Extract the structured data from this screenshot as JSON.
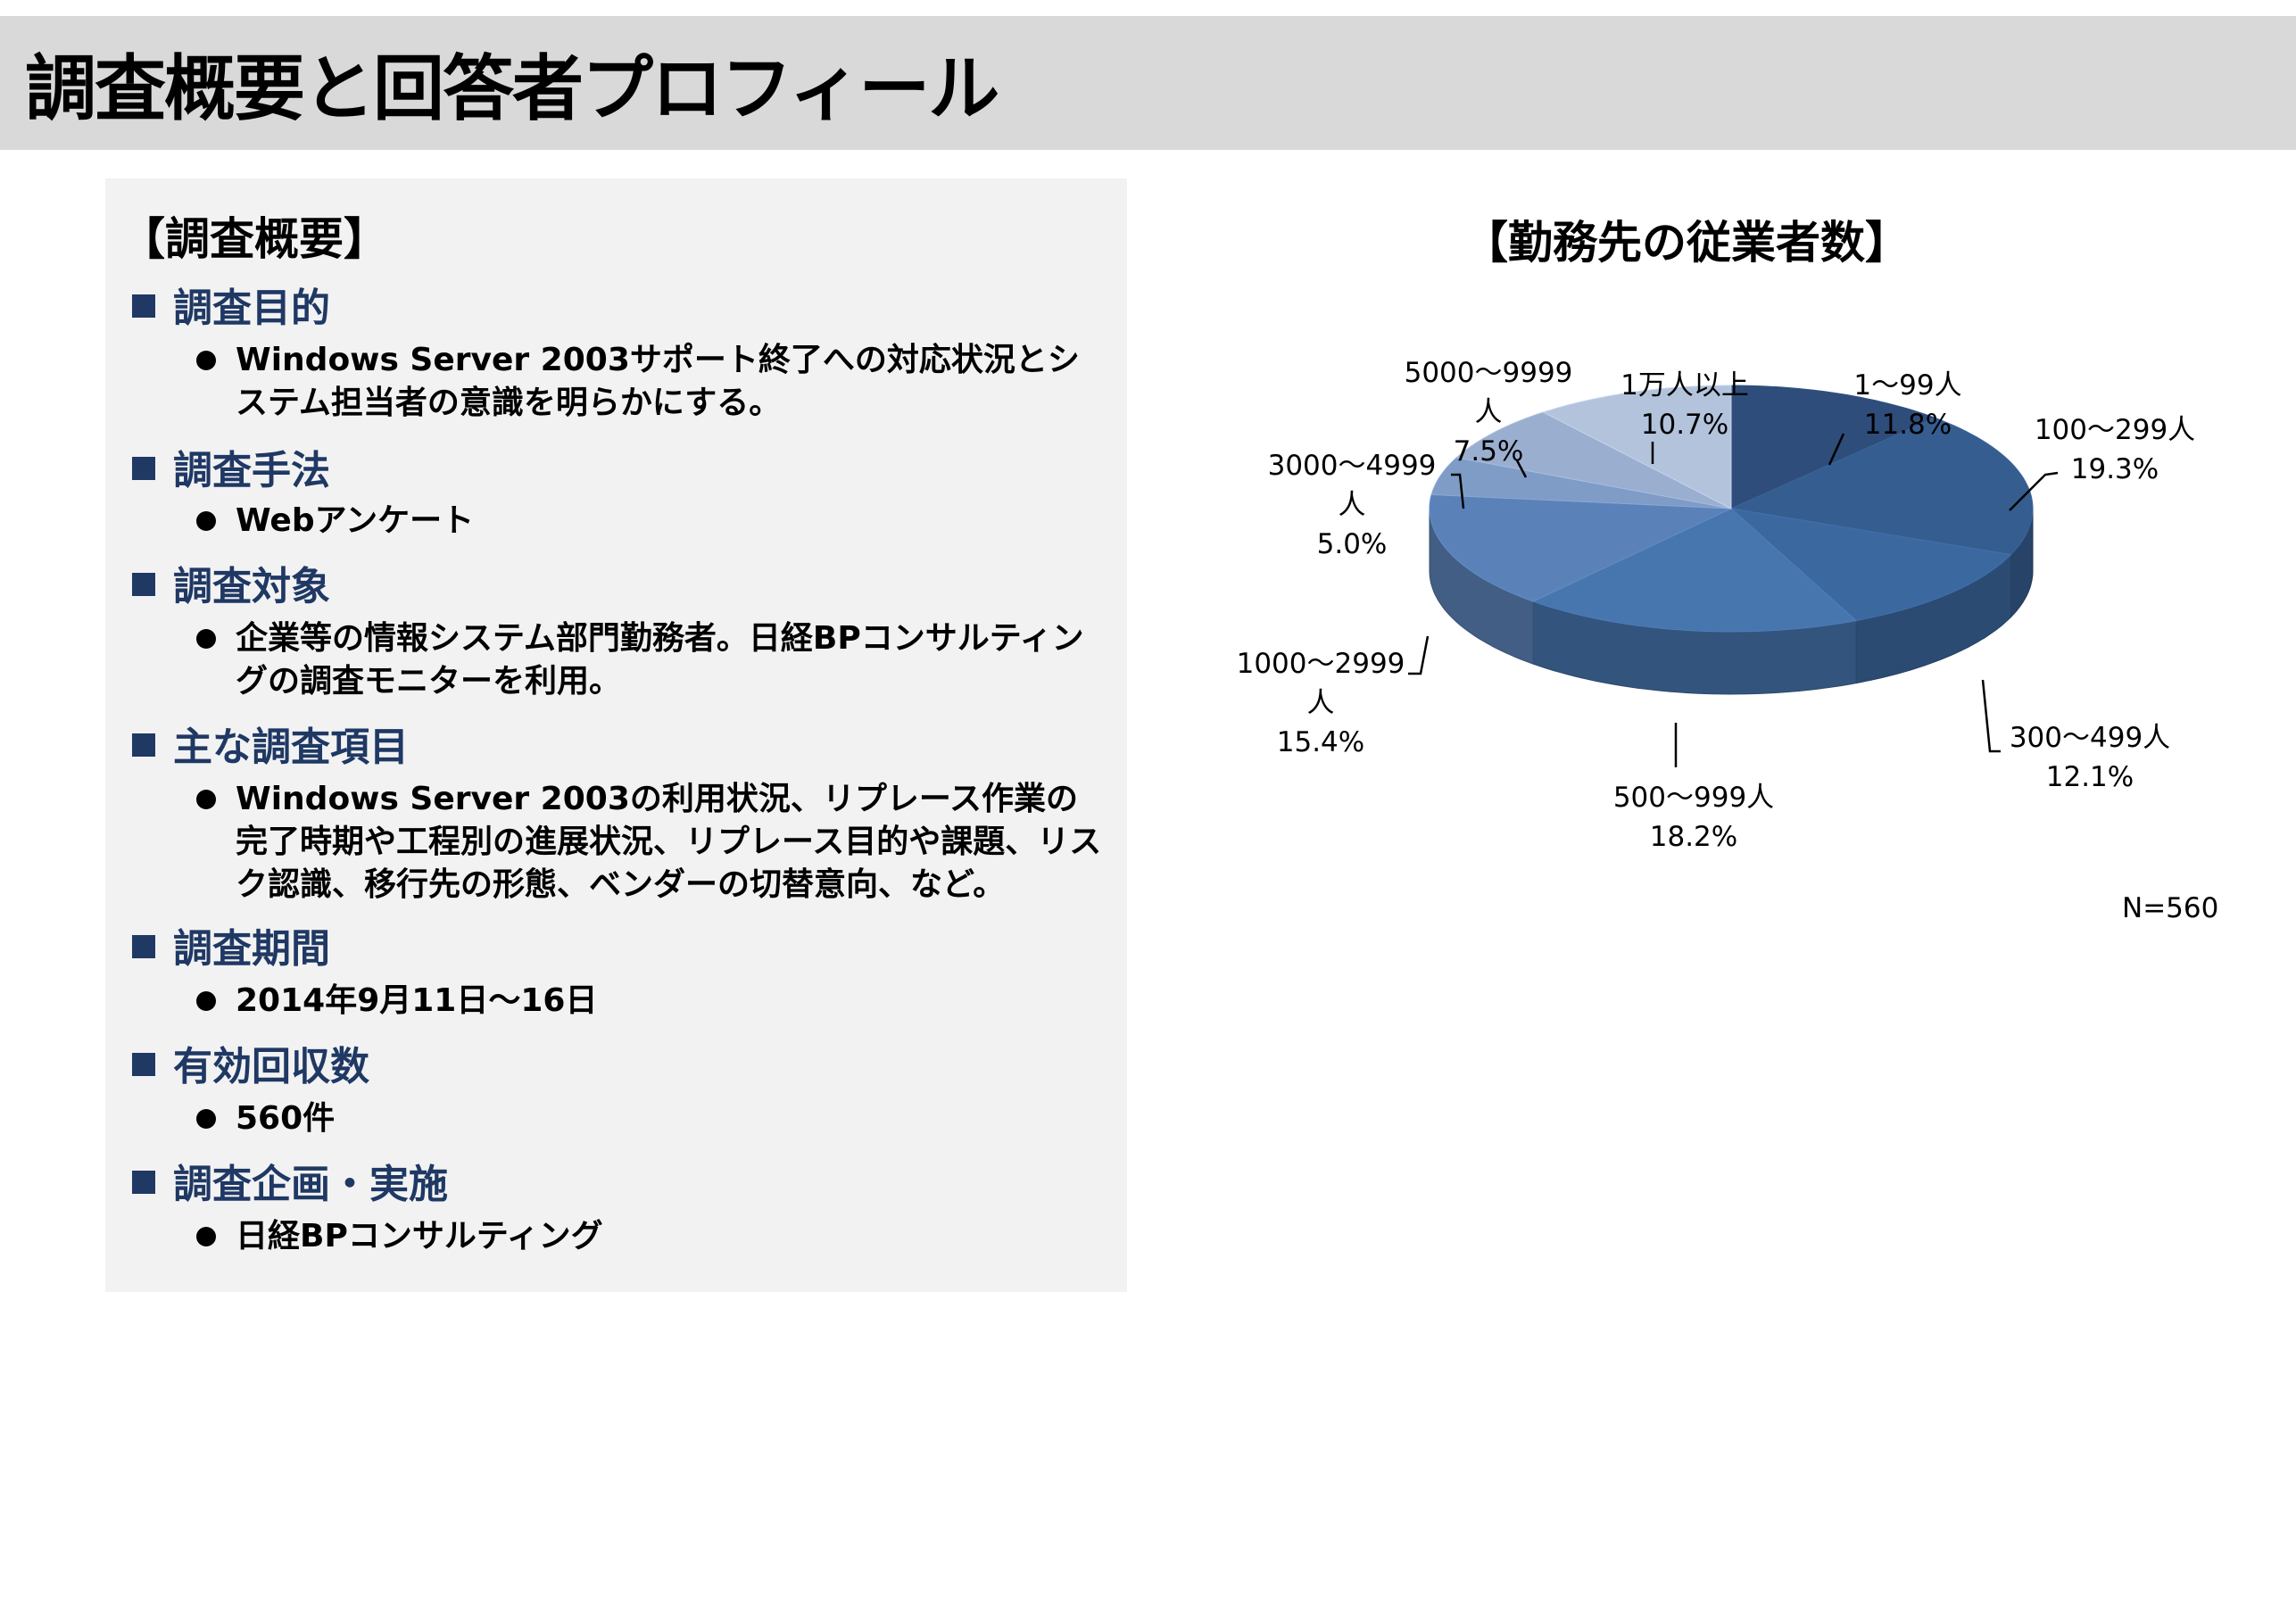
{
  "page_title": "調査概要と回答者プロフィール",
  "overview": {
    "title": "【調査概要】",
    "sections": [
      {
        "heading": "調査目的",
        "lines": [
          "Windows Server 2003サポート終了への対応状況とシステム担当者の意識を明らかにする。"
        ]
      },
      {
        "heading": "調査手法",
        "lines": [
          "Webアンケート"
        ]
      },
      {
        "heading": "調査対象",
        "lines": [
          "企業等の情報システム部門勤務者。日経BPコンサルティングの調査モニターを利用。"
        ]
      },
      {
        "heading": "主な調査項目",
        "lines": [
          "Windows Server 2003の利用状況、リプレース作業の完了時期や工程別の進展状況、リプレース目的や課題、リスク認識、移行先の形態、ベンダーの切替意向、など。"
        ]
      },
      {
        "heading": "調査期間",
        "lines": [
          "2014年9月11日～16日"
        ]
      },
      {
        "heading": "有効回収数",
        "lines": [
          "560件"
        ]
      },
      {
        "heading": "調査企画・実施",
        "lines": [
          "日経BPコンサルティング"
        ]
      }
    ]
  },
  "chart_data": {
    "type": "pie",
    "title": "【勤務先の従業者数】",
    "note": "N=560",
    "categories": [
      "1～99人",
      "100～299人",
      "300～499人",
      "500～999人",
      "1000～2999人",
      "3000～4999人",
      "5000～9999人",
      "1万人以上"
    ],
    "values": [
      11.8,
      19.3,
      12.1,
      18.2,
      15.4,
      5.0,
      7.5,
      10.7
    ],
    "value_labels": [
      "11.8%",
      "19.3%",
      "12.1%",
      "18.2%",
      "15.4%",
      "5.0%",
      "7.5%",
      "10.7%"
    ],
    "label_lines": [
      [
        "1～99人",
        "11.8%"
      ],
      [
        "100～299人",
        "19.3%"
      ],
      [
        "300～499人",
        "12.1%"
      ],
      [
        "500～999人",
        "18.2%"
      ],
      [
        "1000～2999",
        "人",
        "15.4%"
      ],
      [
        "3000～4999",
        "人",
        "5.0%"
      ],
      [
        "5000～9999",
        "人",
        "7.5%"
      ],
      [
        "1万人以上",
        "10.7%"
      ]
    ],
    "colors": [
      "#2e4d7a",
      "#365d8f",
      "#3c68a0",
      "#4775ad",
      "#5b82b8",
      "#7f9cc6",
      "#9aafcf",
      "#b4c3dc"
    ],
    "style": "3d-pie",
    "start": "12 o'clock, clockwise"
  }
}
